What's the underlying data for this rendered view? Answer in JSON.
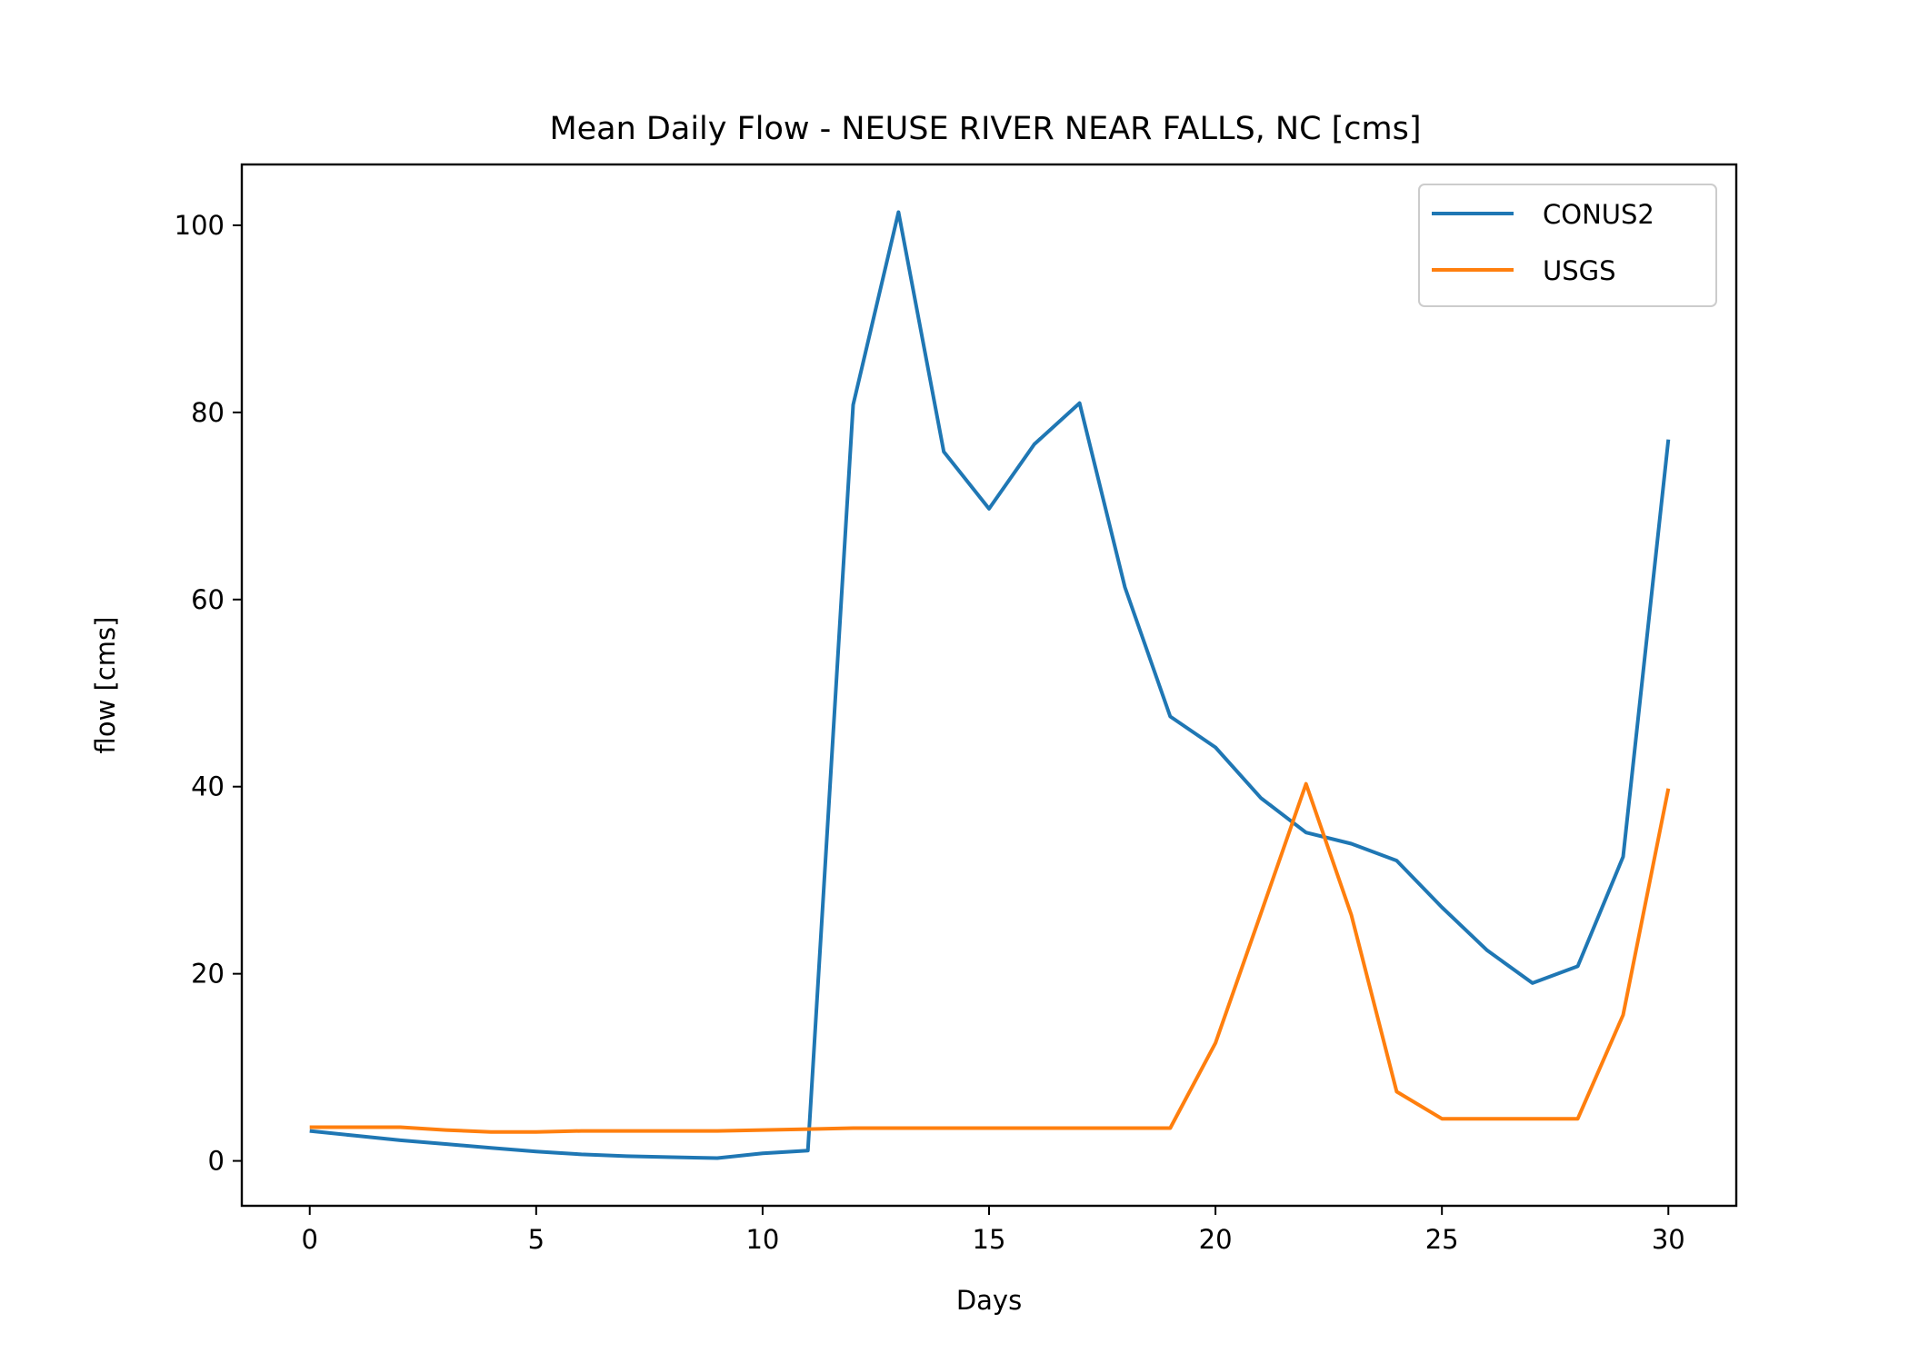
{
  "chart_data": {
    "type": "line",
    "title": "Mean Daily Flow - NEUSE RIVER NEAR FALLS, NC [cms]",
    "xlabel": "Days",
    "ylabel": "flow [cms]",
    "xlim": [
      -1.5,
      31.5
    ],
    "ylim": [
      -4.8,
      106.5
    ],
    "xticks": [
      0,
      5,
      10,
      15,
      20,
      25,
      30
    ],
    "yticks": [
      0,
      20,
      40,
      60,
      80,
      100
    ],
    "grid": false,
    "legend_position": "top-right",
    "x": [
      0,
      1,
      2,
      3,
      4,
      5,
      6,
      7,
      8,
      9,
      10,
      11,
      12,
      13,
      14,
      15,
      16,
      17,
      18,
      19,
      20,
      21,
      22,
      23,
      24,
      25,
      26,
      27,
      28,
      29,
      30
    ],
    "series": [
      {
        "name": "CONUS2",
        "color": "#1f77b4",
        "values": [
          3.2,
          2.7,
          2.2,
          1.8,
          1.4,
          1.0,
          0.7,
          0.5,
          0.4,
          0.3,
          0.8,
          1.1,
          80.8,
          101.4,
          75.8,
          69.7,
          76.6,
          81.0,
          61.3,
          47.5,
          44.2,
          38.8,
          35.1,
          33.9,
          32.1,
          27.1,
          22.5,
          19.0,
          20.8,
          32.5,
          77.1
        ]
      },
      {
        "name": "USGS",
        "color": "#ff7f0e",
        "values": [
          3.6,
          3.6,
          3.6,
          3.3,
          3.1,
          3.1,
          3.2,
          3.2,
          3.2,
          3.2,
          3.3,
          3.4,
          3.5,
          3.5,
          3.5,
          3.5,
          3.5,
          3.5,
          3.5,
          3.5,
          12.6,
          26.4,
          40.3,
          26.3,
          7.4,
          4.5,
          4.5,
          4.5,
          4.5,
          15.6,
          39.8
        ]
      }
    ]
  }
}
